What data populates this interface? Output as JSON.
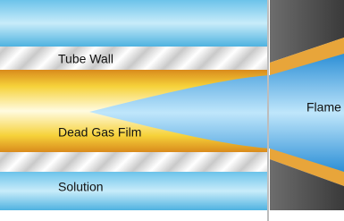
{
  "labels": {
    "tube_wall": "Tube Wall",
    "dead_gas_film": "Dead Gas Film",
    "solution": "Solution",
    "flame": "Flame"
  }
}
